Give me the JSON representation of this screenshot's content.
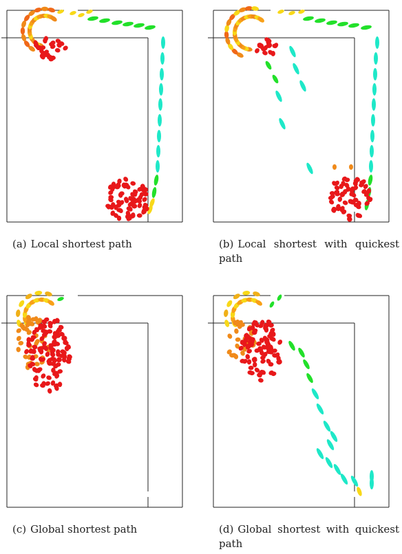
{
  "figure": {
    "panels": [
      {
        "id": "a",
        "caption_tag": "(a)",
        "caption_text": "Local shortest path",
        "pedestrian_groups": [
          {
            "region": "door-queue",
            "color": "#f08a1a",
            "count": 22
          },
          {
            "region": "top-left-crowd",
            "color": "#e8181a",
            "count": 24
          },
          {
            "region": "corridor-top",
            "color": "#22e02a",
            "count": 10
          },
          {
            "region": "corridor-right",
            "color": "#1ee8c8",
            "count": 14
          },
          {
            "region": "bottom-crowd",
            "color": "#e8181a",
            "count": 70
          }
        ]
      },
      {
        "id": "b",
        "caption_tag": "(b)",
        "caption_text": "Local shortest with quickest path",
        "pedestrian_groups": [
          {
            "region": "door-queue",
            "color": "#f08a1a",
            "count": 26
          },
          {
            "region": "top-left-crowd",
            "color": "#e8181a",
            "count": 16
          },
          {
            "region": "corridor-top",
            "color": "#22e02a",
            "count": 10
          },
          {
            "region": "corridor-right",
            "color": "#1ee8c8",
            "count": 14
          },
          {
            "region": "diagonal",
            "color": "#1ee8c8",
            "count": 8
          },
          {
            "region": "bottom-crowd",
            "color": "#e8181a",
            "count": 55
          }
        ]
      },
      {
        "id": "c",
        "caption_tag": "(c)",
        "caption_text": "Global shortest path",
        "pedestrian_groups": [
          {
            "region": "door-queue",
            "color": "#f8c818",
            "count": 12
          },
          {
            "region": "left-crowd",
            "color": "#e8181a",
            "count": 130
          }
        ]
      },
      {
        "id": "d",
        "caption_tag": "(d)",
        "caption_text": "Global shortest with quickest path",
        "pedestrian_groups": [
          {
            "region": "door-queue",
            "color": "#f8c818",
            "count": 12
          },
          {
            "region": "left-crowd",
            "color": "#e8181a",
            "count": 110
          },
          {
            "region": "diagonal",
            "color": "#1ee8c8",
            "count": 16
          }
        ]
      }
    ],
    "colors": {
      "wall": "#222222",
      "red": "#e8181a",
      "orange": "#f08a1a",
      "yellow": "#f8d818",
      "green": "#22e02a",
      "cyan": "#1ee8c8"
    }
  }
}
